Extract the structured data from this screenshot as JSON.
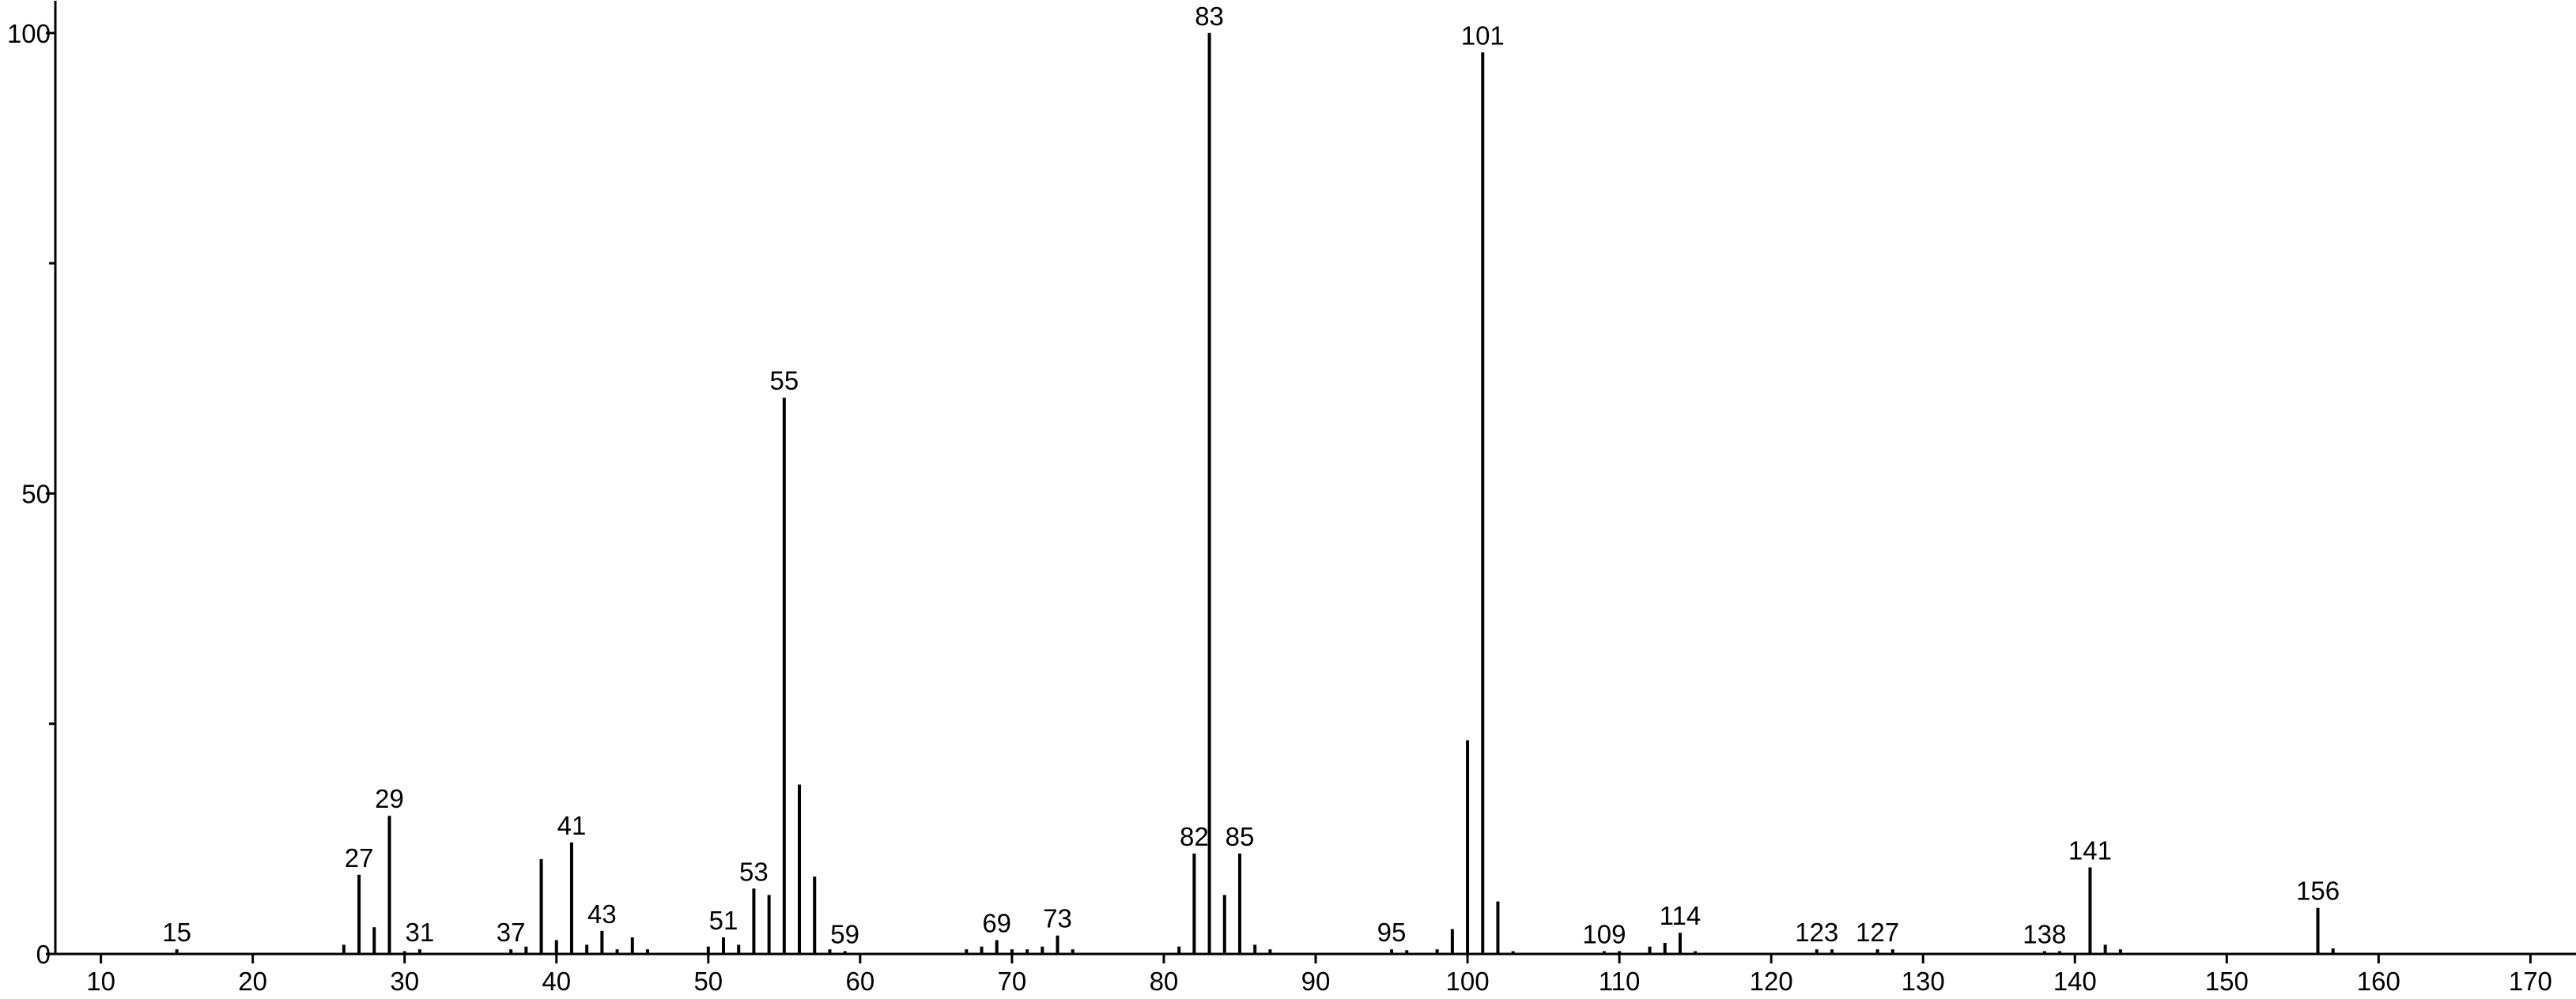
{
  "chart_data": {
    "type": "stem",
    "x": [
      15,
      26,
      27,
      28,
      29,
      30,
      31,
      37,
      38,
      39,
      40,
      41,
      42,
      43,
      44,
      45,
      46,
      50,
      51,
      52,
      53,
      54,
      55,
      56,
      57,
      58,
      59,
      67,
      68,
      69,
      70,
      71,
      72,
      73,
      74,
      81,
      82,
      83,
      84,
      85,
      86,
      87,
      95,
      96,
      98,
      99,
      100,
      101,
      102,
      103,
      109,
      110,
      112,
      113,
      114,
      115,
      123,
      124,
      127,
      128,
      138,
      139,
      141,
      142,
      143,
      156,
      157
    ],
    "values": [
      0.5,
      1,
      8.6,
      2.9,
      15,
      0.3,
      0.5,
      0.5,
      0.8,
      10.3,
      1.5,
      12.1,
      1,
      2.5,
      0.5,
      1.8,
      0.5,
      0.8,
      1.8,
      1,
      7.1,
      6.4,
      60.4,
      18.4,
      8.4,
      0.5,
      0.3,
      0.5,
      0.8,
      1.5,
      0.5,
      0.5,
      0.8,
      2,
      0.5,
      0.8,
      10.9,
      100,
      6.4,
      10.9,
      1,
      0.5,
      0.5,
      0.4,
      0.5,
      2.7,
      23.2,
      97.9,
      5.7,
      0.3,
      0.3,
      0.3,
      0.8,
      1.2,
      2.3,
      0.3,
      0.5,
      0.5,
      0.5,
      0.5,
      0.3,
      0.3,
      9.4,
      1,
      0.5,
      5,
      0.6
    ],
    "peak_labels": [
      "15",
      null,
      "27",
      null,
      "29",
      null,
      "31",
      "37",
      null,
      null,
      null,
      "41",
      null,
      "43",
      null,
      null,
      null,
      null,
      "51",
      null,
      "53",
      null,
      "55",
      null,
      null,
      null,
      "59",
      null,
      null,
      "69",
      null,
      null,
      null,
      "73",
      null,
      null,
      "82",
      "83",
      null,
      "85",
      null,
      null,
      "95",
      null,
      null,
      null,
      null,
      "101",
      null,
      null,
      "109",
      null,
      null,
      null,
      "114",
      null,
      "123",
      null,
      "127",
      null,
      "138",
      null,
      "141",
      null,
      null,
      "156",
      null
    ],
    "color": "#000000",
    "xlim": [
      7,
      173
    ],
    "xticks": [
      10,
      20,
      30,
      40,
      50,
      60,
      70,
      80,
      90,
      100,
      110,
      120,
      130,
      140,
      150,
      160,
      170
    ],
    "ylim": [
      0,
      103.5
    ],
    "yticks": [
      0,
      50,
      100
    ],
    "yminorticks": [
      25,
      75
    ]
  }
}
